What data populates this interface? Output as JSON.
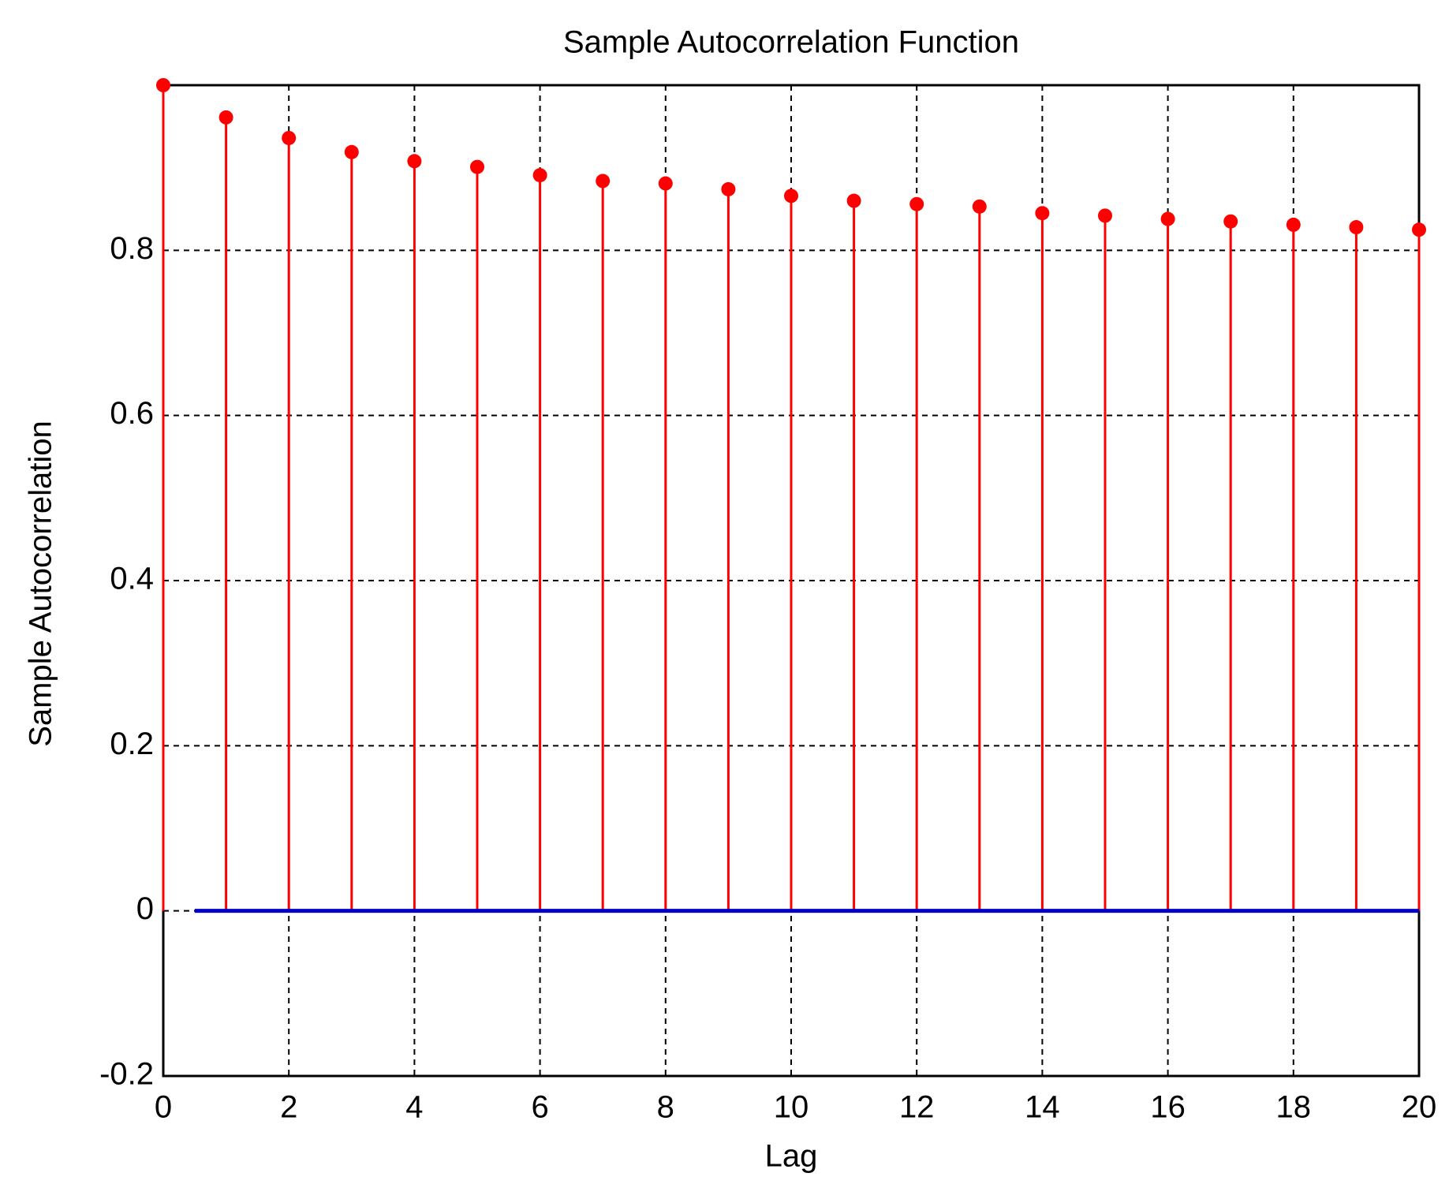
{
  "chart_data": {
    "type": "stem",
    "title": "Sample Autocorrelation Function",
    "x_label": "Lag",
    "y_label": "Sample Autocorrelation",
    "x": [
      0,
      1,
      2,
      3,
      4,
      5,
      6,
      7,
      8,
      9,
      10,
      11,
      12,
      13,
      14,
      15,
      16,
      17,
      18,
      19,
      20
    ],
    "series": [
      {
        "color": "#ff0000",
        "values": [
          1.0,
          0.961,
          0.936,
          0.919,
          0.908,
          0.901,
          0.891,
          0.884,
          0.881,
          0.874,
          0.866,
          0.86,
          0.856,
          0.853,
          0.845,
          0.842,
          0.838,
          0.835,
          0.831,
          0.828,
          0.825
        ]
      }
    ],
    "bounds": {
      "color": "#0000cc",
      "x": [
        0.5,
        20
      ],
      "values": [
        0,
        0
      ]
    },
    "xlim": [
      0,
      20
    ],
    "xticks": [
      0,
      2,
      4,
      6,
      8,
      10,
      12,
      14,
      16,
      18,
      20
    ],
    "ylim": [
      -0.2,
      1
    ],
    "yticks": [
      -0.2,
      0,
      0.2,
      0.4,
      0.6,
      0.8
    ],
    "grid": true
  }
}
